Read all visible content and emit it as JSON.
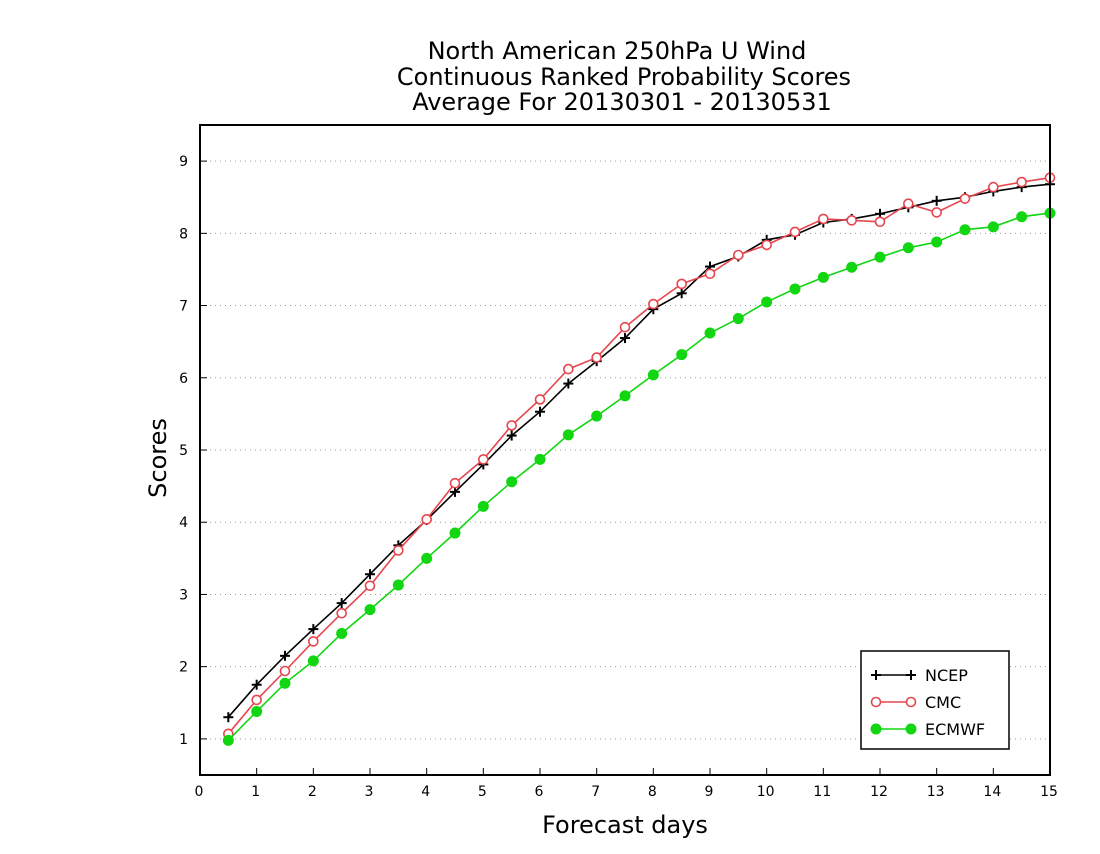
{
  "chart_data": {
    "type": "line",
    "title": [
      "North American 250hPa U Wind",
      "Continuous Ranked Probability Scores",
      "Average For 20130301 - 20130531"
    ],
    "xlabel": "Forecast days",
    "ylabel": "Scores",
    "xlim": [
      0,
      15
    ],
    "ylim": [
      0.5,
      9.5
    ],
    "xticks": [
      "0",
      "1",
      "2",
      "3",
      "4",
      "5",
      "6",
      "7",
      "8",
      "9",
      "10",
      "11",
      "12",
      "13",
      "14",
      "15"
    ],
    "yticks": [
      "1",
      "2",
      "3",
      "4",
      "5",
      "6",
      "7",
      "8",
      "9"
    ],
    "grid": "horizontal dotted",
    "legend_position": "bottom-right",
    "x": [
      0.5,
      1.0,
      1.5,
      2.0,
      2.5,
      3.0,
      3.5,
      4.0,
      4.5,
      5.0,
      5.5,
      6.0,
      6.5,
      7.0,
      7.5,
      8.0,
      8.5,
      9.0,
      9.5,
      10.0,
      10.5,
      11.0,
      11.5,
      12.0,
      12.5,
      13.0,
      13.5,
      14.0,
      14.5,
      15.0
    ],
    "series": [
      {
        "name": "NCEP",
        "color": "#000000",
        "marker": "plus",
        "values": [
          1.3,
          1.75,
          2.15,
          2.52,
          2.88,
          3.28,
          3.68,
          4.03,
          4.42,
          4.8,
          5.2,
          5.53,
          5.92,
          6.23,
          6.55,
          6.95,
          7.17,
          7.54,
          7.68,
          7.91,
          7.98,
          8.15,
          8.2,
          8.27,
          8.36,
          8.45,
          8.5,
          8.58,
          8.64,
          8.68
        ]
      },
      {
        "name": "CMC",
        "color": "#e8464e",
        "marker": "open-circle",
        "values": [
          1.07,
          1.54,
          1.94,
          2.35,
          2.74,
          3.12,
          3.61,
          4.04,
          4.54,
          4.87,
          5.34,
          5.7,
          6.12,
          6.28,
          6.7,
          7.02,
          7.3,
          7.44,
          7.7,
          7.84,
          8.02,
          8.2,
          8.18,
          8.16,
          8.41,
          8.29,
          8.48,
          8.64,
          8.71,
          8.77
        ]
      },
      {
        "name": "ECMWF",
        "color": "#11d611",
        "marker": "filled-circle",
        "values": [
          0.98,
          1.38,
          1.77,
          2.08,
          2.46,
          2.79,
          3.13,
          3.5,
          3.85,
          4.22,
          4.56,
          4.87,
          5.21,
          5.47,
          5.75,
          6.04,
          6.32,
          6.62,
          6.82,
          7.05,
          7.23,
          7.39,
          7.53,
          7.67,
          7.8,
          7.88,
          8.05,
          8.09,
          8.23,
          8.28
        ]
      }
    ]
  }
}
